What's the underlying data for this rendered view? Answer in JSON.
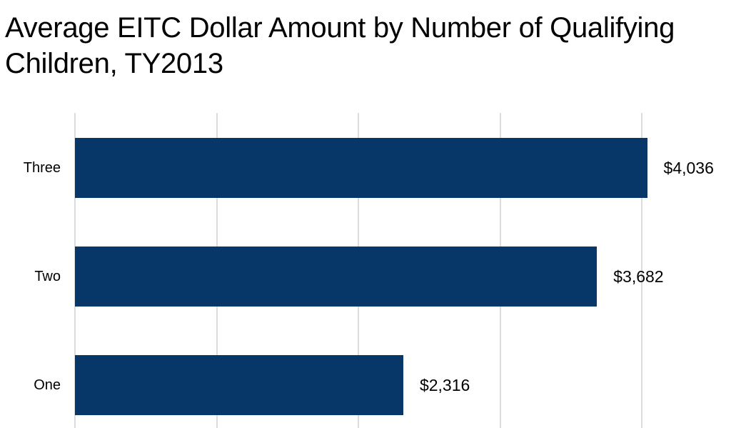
{
  "chart_data": {
    "type": "bar",
    "orientation": "horizontal",
    "title": "Average EITC Dollar Amount by Number of Qualifying Children, TY2013",
    "xlabel": "",
    "ylabel": "",
    "categories": [
      "Three",
      "Two",
      "One"
    ],
    "values": [
      4036,
      3682,
      2316
    ],
    "data_labels": [
      "$4,036",
      "$3,682",
      "$2,316"
    ],
    "xlim": [
      0,
      4600
    ],
    "gridlines_x": [
      0,
      1000,
      2000,
      3000,
      4000
    ],
    "grid": true,
    "legend": null,
    "bar_color": "#073668"
  }
}
